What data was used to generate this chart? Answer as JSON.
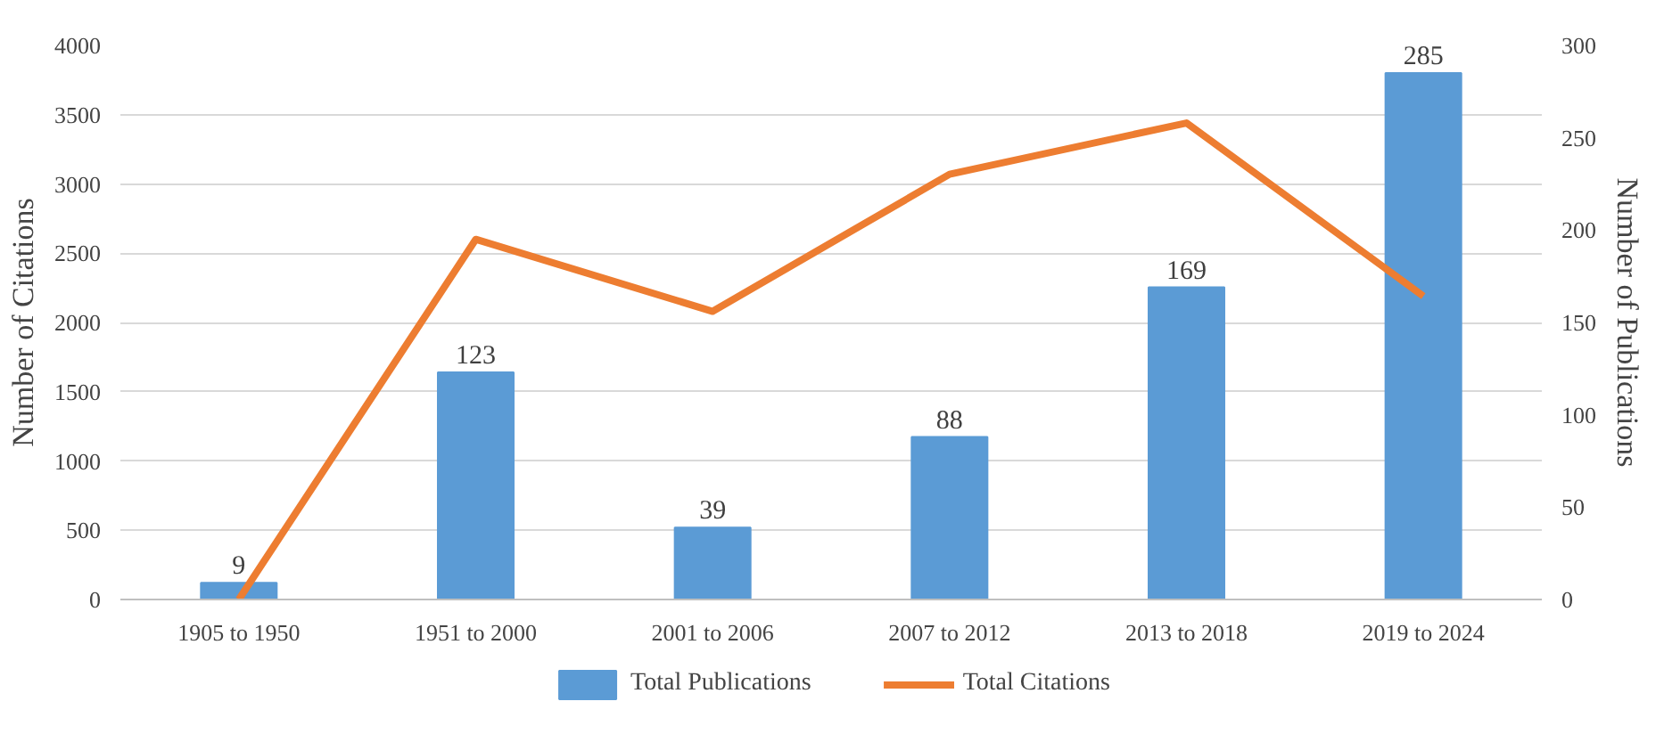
{
  "chart_data": {
    "type": "bar",
    "ylabel": "Number of Citations",
    "y2label": "Number of Publications",
    "categories": [
      "1905 to 1950",
      "1951 to 2000",
      "2001 to 2006",
      "2007 to 2012",
      "2013 to 2018",
      "2019 to 2024"
    ],
    "series": [
      {
        "name": "Total Publications",
        "axis": "y2",
        "color": "#5b9bd5",
        "values": [
          9,
          123,
          39,
          88,
          169,
          285
        ],
        "data_labels": true
      },
      {
        "name": "Total Citations",
        "type": "line",
        "color": "#ed7d31",
        "values": [
          0,
          2600,
          2080,
          3070,
          3440,
          2190
        ]
      }
    ],
    "ylim": [
      0,
      4000
    ],
    "yticks": [
      0,
      500,
      1000,
      1500,
      2000,
      2500,
      3000,
      3500,
      4000
    ],
    "y2lim": [
      0,
      300
    ],
    "y2ticks": [
      0,
      50,
      100,
      150,
      200,
      250,
      300
    ],
    "grid": "y",
    "legend": "bottom"
  }
}
